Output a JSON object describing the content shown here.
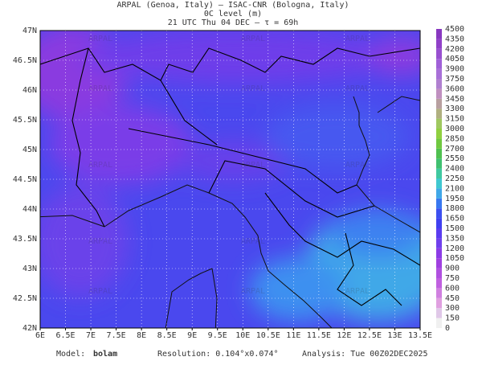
{
  "header": {
    "line1": "ARPAL (Genoa, Italy)  –  ISAC-CNR (Bologna, Italy)",
    "line2": "0C level (m)",
    "line3": "21 UTC Thu 04 DEC  –  τ = 69h"
  },
  "map": {
    "watermark": "ARPAL",
    "lon_ticks": [
      "6E",
      "6.5E",
      "7E",
      "7.5E",
      "8E",
      "8.5E",
      "9E",
      "9.5E",
      "10E",
      "10.5E",
      "11E",
      "11.5E",
      "12E",
      "12.5E",
      "13E",
      "13.5E"
    ],
    "lat_ticks": [
      "47N",
      "46.5N",
      "46N",
      "45.5N",
      "45N",
      "44.5N",
      "44N",
      "43.5N",
      "43N",
      "42.5N",
      "42N"
    ]
  },
  "colorbar": {
    "levels": [
      0,
      150,
      300,
      450,
      600,
      750,
      900,
      1050,
      1200,
      1350,
      1500,
      1650,
      1800,
      1950,
      2100,
      2250,
      2400,
      2550,
      2700,
      2850,
      3000,
      3150,
      3300,
      3450,
      3600,
      3750,
      3900,
      4050,
      4200,
      4350,
      4500
    ],
    "colors": [
      "#f0f0f0",
      "#e0c8e8",
      "#e0a0e0",
      "#d080e0",
      "#c060e0",
      "#b050e0",
      "#a040e0",
      "#8c3ce6",
      "#7040ec",
      "#5a3cf0",
      "#4040f0",
      "#3c50f0",
      "#3878f0",
      "#40a8e8",
      "#40c8d0",
      "#40c8a0",
      "#40c070",
      "#50c050",
      "#70c840",
      "#90d040",
      "#a0c860",
      "#b0b080",
      "#b8a0a0",
      "#c090c0",
      "#b080d0",
      "#a870d8",
      "#a060d8",
      "#9850d0",
      "#9040c8",
      "#8838c0"
    ]
  },
  "footer": {
    "model_label": "Model:",
    "model": "bolam",
    "resolution": "Resolution: 0.104°x0.074°",
    "analysis": "Analysis: Tue 00Z02DEC2025"
  }
}
